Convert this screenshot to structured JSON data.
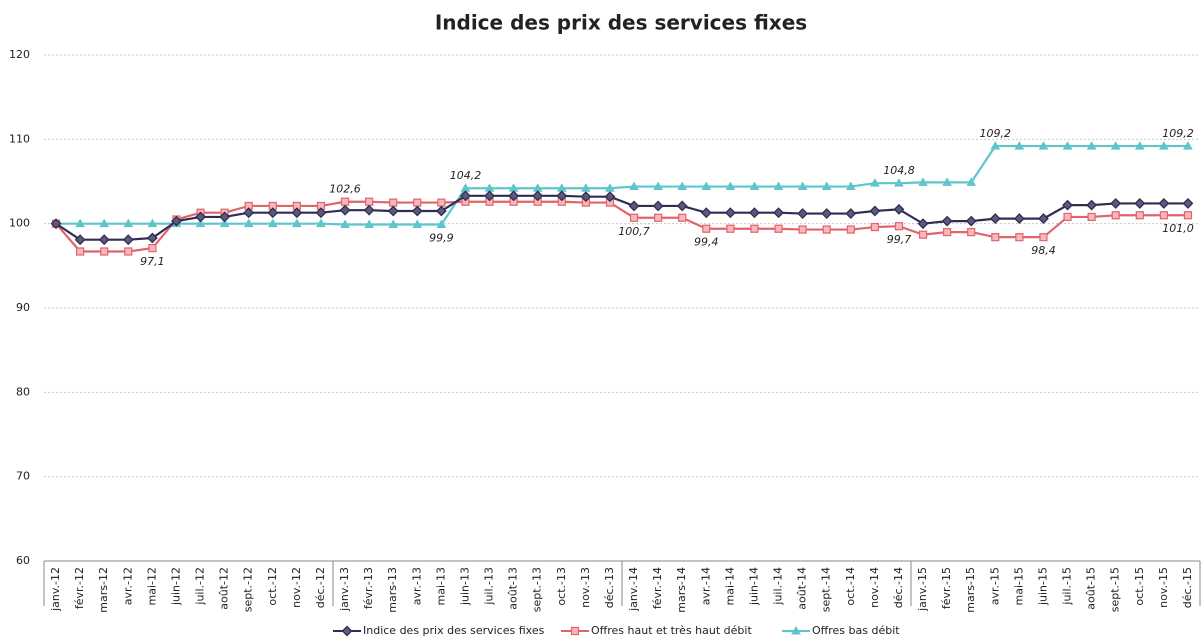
{
  "chart_data": {
    "type": "line",
    "title": "Indice des prix des services fixes",
    "categories": [
      "janv.-12",
      "févr.-12",
      "mars-12",
      "avr.-12",
      "mai-12",
      "juin-12",
      "juil.-12",
      "août-12",
      "sept.-12",
      "oct.-12",
      "nov.-12",
      "déc.-12",
      "janv.-13",
      "févr.-13",
      "mars-13",
      "avr.-13",
      "mai-13",
      "juin-13",
      "juil.-13",
      "août-13",
      "sept.-13",
      "oct.-13",
      "nov.-13",
      "déc.-13",
      "janv.-14",
      "févr.-14",
      "mars-14",
      "avr.-14",
      "mai-14",
      "juin-14",
      "juil.-14",
      "août-14",
      "sept.-14",
      "oct.-14",
      "nov.-14",
      "déc.-14",
      "janv.-15",
      "févr.-15",
      "mars-15",
      "avr.-15",
      "mai-15",
      "juin-15",
      "juil.-15",
      "août-15",
      "sept.-15",
      "oct.-15",
      "nov.-15",
      "déc.-15"
    ],
    "series": [
      {
        "name": "Indice des prix des services fixes",
        "color": "#2f2e50",
        "marker": "diamond",
        "values": [
          100,
          98.1,
          98.1,
          98.1,
          98.3,
          100.3,
          100.8,
          100.8,
          101.3,
          101.3,
          101.3,
          101.3,
          101.6,
          101.6,
          101.5,
          101.5,
          101.5,
          103.3,
          103.3,
          103.3,
          103.3,
          103.3,
          103.2,
          103.2,
          102.1,
          102.1,
          102.1,
          101.3,
          101.3,
          101.3,
          101.3,
          101.2,
          101.2,
          101.2,
          101.5,
          101.7,
          100,
          100.3,
          100.3,
          100.6,
          100.6,
          100.6,
          102.2,
          102.2,
          102.4,
          102.4,
          102.4,
          102.4
        ]
      },
      {
        "name": "Offres haut et très haut débit",
        "color": "#e0646c",
        "marker": "square",
        "values": [
          100,
          96.7,
          96.7,
          96.7,
          97.1,
          100.5,
          101.3,
          101.3,
          102.1,
          102.1,
          102.1,
          102.1,
          102.6,
          102.6,
          102.5,
          102.5,
          102.5,
          102.6,
          102.6,
          102.6,
          102.6,
          102.6,
          102.5,
          102.5,
          100.7,
          100.7,
          100.7,
          99.4,
          99.4,
          99.4,
          99.4,
          99.3,
          99.3,
          99.3,
          99.6,
          99.7,
          98.7,
          99.0,
          99.0,
          98.4,
          98.4,
          98.4,
          100.8,
          100.8,
          101.0,
          101.0,
          101.0,
          101.0
        ],
        "value_labels": [
          null,
          null,
          null,
          null,
          "97,1",
          null,
          null,
          null,
          null,
          null,
          null,
          null,
          "102,6",
          null,
          null,
          null,
          null,
          null,
          null,
          null,
          null,
          null,
          null,
          null,
          "100,7",
          null,
          null,
          "99,4",
          null,
          null,
          null,
          null,
          null,
          null,
          null,
          "99,7",
          null,
          null,
          null,
          null,
          null,
          "98,4",
          null,
          null,
          null,
          null,
          null,
          "101,0"
        ]
      },
      {
        "name": "Offres bas débit",
        "color": "#5ec5cc",
        "marker": "triangle",
        "values": [
          100,
          100,
          100,
          100,
          100,
          100,
          100,
          100,
          100,
          100,
          100,
          100,
          99.9,
          99.9,
          99.9,
          99.9,
          99.9,
          104.2,
          104.2,
          104.2,
          104.2,
          104.2,
          104.2,
          104.2,
          104.4,
          104.4,
          104.4,
          104.4,
          104.4,
          104.4,
          104.4,
          104.4,
          104.4,
          104.4,
          104.8,
          104.8,
          104.9,
          104.9,
          104.9,
          109.2,
          109.2,
          109.2,
          109.2,
          109.2,
          109.2,
          109.2,
          109.2,
          109.2
        ],
        "value_labels": [
          null,
          null,
          null,
          null,
          null,
          null,
          null,
          null,
          null,
          null,
          null,
          null,
          null,
          null,
          null,
          null,
          "99,9",
          "104,2",
          null,
          null,
          null,
          null,
          null,
          null,
          null,
          null,
          null,
          null,
          null,
          null,
          null,
          null,
          null,
          null,
          null,
          "104,8",
          null,
          null,
          null,
          "109,2",
          null,
          null,
          null,
          null,
          null,
          null,
          null,
          "109,2"
        ]
      }
    ],
    "ylim": [
      60,
      120
    ],
    "yticks": [
      60,
      70,
      80,
      90,
      100,
      110,
      120
    ],
    "grid": true
  }
}
